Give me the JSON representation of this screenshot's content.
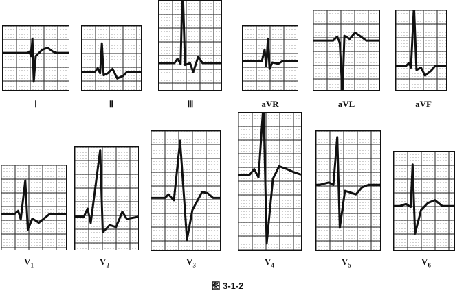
{
  "leads": [
    {
      "id": "I",
      "label": "Ⅰ",
      "sub": ""
    },
    {
      "id": "II",
      "label": "Ⅱ",
      "sub": ""
    },
    {
      "id": "III",
      "label": "Ⅲ",
      "sub": ""
    },
    {
      "id": "aVR",
      "label": "aVR",
      "sub": ""
    },
    {
      "id": "aVL",
      "label": "aVL",
      "sub": ""
    },
    {
      "id": "aVF",
      "label": "aVF",
      "sub": ""
    },
    {
      "id": "V1",
      "label": "V",
      "sub": "1"
    },
    {
      "id": "V2",
      "label": "V",
      "sub": "2"
    },
    {
      "id": "V3",
      "label": "V",
      "sub": "3"
    },
    {
      "id": "V4",
      "label": "V",
      "sub": "4"
    },
    {
      "id": "V5",
      "label": "V",
      "sub": "5"
    },
    {
      "id": "V6",
      "label": "V",
      "sub": "6"
    }
  ],
  "caption": "图 3-1-2",
  "colors": {
    "trace": "#111111",
    "grid": "#666666",
    "background": "#ffffff"
  }
}
